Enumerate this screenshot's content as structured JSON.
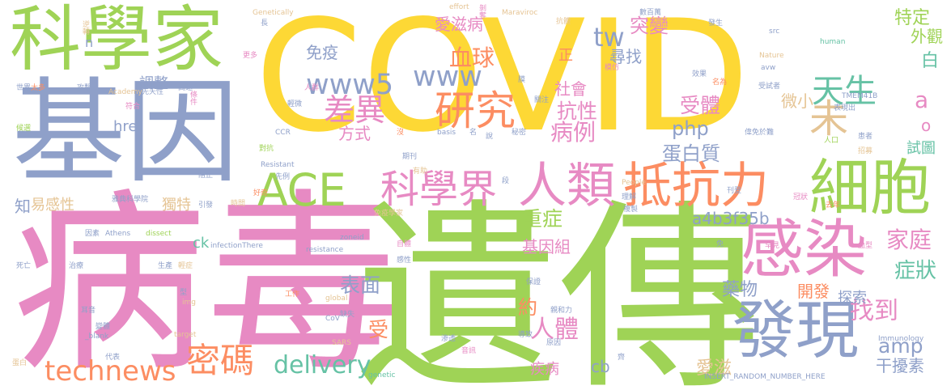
{
  "colors": {
    "green": "#9fd356",
    "blue": "#8fa0c9",
    "pink": "#e78ac3",
    "yellow": "#fdd835",
    "orange": "#fc8d62",
    "teal": "#66c2a5",
    "tan": "#e5c494"
  },
  "words": [
    {
      "text": "COVID",
      "color": "yellow"
    },
    {
      "text": "病毒",
      "color": "pink"
    },
    {
      "text": "遺傳",
      "color": "green"
    },
    {
      "text": "基因",
      "color": "blue"
    },
    {
      "text": "科學家",
      "color": "green"
    },
    {
      "text": "細胞",
      "color": "green"
    },
    {
      "text": "感染",
      "color": "pink"
    },
    {
      "text": "發現",
      "color": "blue"
    },
    {
      "text": "抵抗力",
      "color": "orange"
    },
    {
      "text": "人類",
      "color": "pink"
    },
    {
      "text": "ACE",
      "color": "green"
    },
    {
      "text": "科學界",
      "color": "pink"
    },
    {
      "text": "technews",
      "color": "orange"
    },
    {
      "text": "密碼",
      "color": "orange"
    },
    {
      "text": "delivery",
      "color": "teal"
    },
    {
      "text": "研究",
      "color": "orange"
    },
    {
      "text": "www5",
      "color": "blue"
    },
    {
      "text": "www",
      "color": "blue"
    },
    {
      "text": "差異",
      "color": "pink"
    },
    {
      "text": "天生",
      "color": "teal"
    },
    {
      "text": "未",
      "color": "tan"
    },
    {
      "text": "tw",
      "color": "blue"
    },
    {
      "text": "突變",
      "color": "pink"
    },
    {
      "text": "血球",
      "color": "orange"
    },
    {
      "text": "找到",
      "color": "pink"
    },
    {
      "text": "人體",
      "color": "pink"
    },
    {
      "text": "表面",
      "color": "blue"
    },
    {
      "text": "家庭",
      "color": "pink"
    },
    {
      "text": "症狀",
      "color": "teal"
    },
    {
      "text": "病例",
      "color": "pink"
    },
    {
      "text": "受體",
      "color": "pink"
    },
    {
      "text": "抗性",
      "color": "pink"
    },
    {
      "text": "重症",
      "color": "green"
    },
    {
      "text": "amp",
      "color": "blue"
    },
    {
      "text": "php",
      "color": "blue"
    },
    {
      "text": "蛋白質",
      "color": "blue"
    },
    {
      "text": "藥物",
      "color": "blue"
    },
    {
      "text": "a4b3f35b",
      "color": "blue"
    },
    {
      "text": "開發",
      "color": "orange"
    },
    {
      "text": "基因組",
      "color": "pink"
    },
    {
      "text": "約",
      "color": "orange"
    },
    {
      "text": "受",
      "color": "orange"
    },
    {
      "text": "特定",
      "color": "green"
    },
    {
      "text": "外觀",
      "color": "green"
    },
    {
      "text": "白",
      "color": "teal"
    },
    {
      "text": "a",
      "color": "pink"
    },
    {
      "text": "o",
      "color": "pink"
    },
    {
      "text": "試圖",
      "color": "teal"
    },
    {
      "text": "微小",
      "color": "tan"
    },
    {
      "text": "方式",
      "color": "pink"
    },
    {
      "text": "尋找",
      "color": "blue"
    },
    {
      "text": "免疫",
      "color": "blue"
    },
    {
      "text": "愛滋病",
      "color": "pink"
    },
    {
      "text": "社會",
      "color": "pink"
    },
    {
      "text": "正",
      "color": "orange"
    },
    {
      "text": "調整",
      "color": "blue"
    },
    {
      "text": "href",
      "color": "blue"
    },
    {
      "text": "知",
      "color": "blue"
    },
    {
      "text": "易感性",
      "color": "tan"
    },
    {
      "text": "獨特",
      "color": "tan"
    },
    {
      "text": "ck",
      "color": "teal"
    },
    {
      "text": "愛滋",
      "color": "tan"
    },
    {
      "text": "干擾素",
      "color": "blue"
    },
    {
      "text": "疾病",
      "color": "pink"
    },
    {
      "text": "cb",
      "color": "blue"
    },
    {
      "text": "探索",
      "color": "blue"
    },
    {
      "text": "n",
      "color": "blue"
    }
  ],
  "small_words": [
    {
      "text": "逆轉",
      "color": "tan"
    },
    {
      "text": "世界",
      "color": "blue"
    },
    {
      "text": "太多",
      "color": "orange"
    },
    {
      "text": "攻擊",
      "color": "blue"
    },
    {
      "text": "候選",
      "color": "green"
    },
    {
      "text": "Academy",
      "color": "tan"
    },
    {
      "text": "符合",
      "color": "pink"
    },
    {
      "text": "先天性",
      "color": "blue"
    },
    {
      "text": "條件",
      "color": "pink"
    },
    {
      "text": "高速",
      "color": "blue"
    },
    {
      "text": "更多",
      "color": "pink"
    },
    {
      "text": "長",
      "color": "blue"
    },
    {
      "text": "Genetically",
      "color": "tan"
    },
    {
      "text": "effort",
      "color": "tan"
    },
    {
      "text": "剝奪",
      "color": "pink"
    },
    {
      "text": "CCR",
      "color": "blue"
    },
    {
      "text": "對抗",
      "color": "green"
    },
    {
      "text": "輕微",
      "color": "blue"
    },
    {
      "text": "人群",
      "color": "pink"
    },
    {
      "text": "Resistant",
      "color": "blue"
    },
    {
      "text": "先例",
      "color": "blue"
    },
    {
      "text": "阻止",
      "color": "blue"
    },
    {
      "text": "雅典科學院",
      "color": "blue"
    },
    {
      "text": "引發",
      "color": "blue"
    },
    {
      "text": "時間",
      "color": "tan"
    },
    {
      "text": "因素",
      "color": "blue"
    },
    {
      "text": "Athens",
      "color": "blue"
    },
    {
      "text": "dissect",
      "color": "green"
    },
    {
      "text": "infectionThere",
      "color": "blue"
    },
    {
      "text": "zoneid",
      "color": "blue"
    },
    {
      "text": "resistance",
      "color": "blue"
    },
    {
      "text": "死亡",
      "color": "blue"
    },
    {
      "text": "治療",
      "color": "blue"
    },
    {
      "text": "生產",
      "color": "blue"
    },
    {
      "text": "輕症",
      "color": "tan"
    },
    {
      "text": "型",
      "color": "blue"
    },
    {
      "text": "img",
      "color": "tan"
    },
    {
      "text": "耳音",
      "color": "blue"
    },
    {
      "text": "變體",
      "color": "blue"
    },
    {
      "text": "_blank",
      "color": "blue"
    },
    {
      "text": "target",
      "color": "tan"
    },
    {
      "text": "代表",
      "color": "blue"
    },
    {
      "text": "蛋白",
      "color": "tan"
    },
    {
      "text": "SARS",
      "color": "tan"
    },
    {
      "text": "genetic",
      "color": "teal"
    },
    {
      "text": "免疫學家",
      "color": "tan"
    },
    {
      "text": "CoV",
      "color": "blue"
    },
    {
      "text": "global",
      "color": "tan"
    },
    {
      "text": "缺失",
      "color": "blue"
    },
    {
      "text": "工作",
      "color": "orange"
    },
    {
      "text": "保證",
      "color": "blue"
    },
    {
      "text": "親和力",
      "color": "blue"
    },
    {
      "text": "導致",
      "color": "blue"
    },
    {
      "text": "原因",
      "color": "blue"
    },
    {
      "text": "音訊",
      "color": "pink"
    },
    {
      "text": "Maraviroc",
      "color": "tan"
    },
    {
      "text": "抗體",
      "color": "tan"
    },
    {
      "text": "模仿",
      "color": "pink"
    },
    {
      "text": "發生",
      "color": "blue"
    },
    {
      "text": "效果",
      "color": "blue"
    },
    {
      "text": "名為",
      "color": "orange"
    },
    {
      "text": "src",
      "color": "blue"
    },
    {
      "text": "Nature",
      "color": "tan"
    },
    {
      "text": "avw",
      "color": "blue"
    },
    {
      "text": "human",
      "color": "teal"
    },
    {
      "text": "TMEM41B",
      "color": "blue"
    },
    {
      "text": "表現出",
      "color": "blue"
    },
    {
      "text": "患者",
      "color": "blue"
    },
    {
      "text": "招募",
      "color": "tan"
    },
    {
      "text": "人口",
      "color": "green"
    },
    {
      "text": "偉免於難",
      "color": "blue"
    },
    {
      "text": "受試者",
      "color": "blue"
    },
    {
      "text": "數百萬",
      "color": "blue"
    },
    {
      "text": "期刊",
      "color": "blue"
    },
    {
      "text": "有助",
      "color": "tan"
    },
    {
      "text": "basis",
      "color": "blue"
    },
    {
      "text": "秘密",
      "color": "blue"
    },
    {
      "text": "關注",
      "color": "blue"
    },
    {
      "text": "People",
      "color": "tan"
    },
    {
      "text": "理解",
      "color": "blue"
    },
    {
      "text": "複製",
      "color": "blue"
    },
    {
      "text": "刊登",
      "color": "blue"
    },
    {
      "text": "去年",
      "color": "orange"
    },
    {
      "text": "罕見",
      "color": "pink"
    },
    {
      "text": "Immunology",
      "color": "blue"
    },
    {
      "text": "INSERT_RANDOM_NUMBER_HERE",
      "color": "blue"
    },
    {
      "text": "自體",
      "color": "pink"
    },
    {
      "text": "渗透",
      "color": "blue"
    },
    {
      "text": "感性",
      "color": "blue"
    },
    {
      "text": "好奇",
      "color": "orange"
    },
    {
      "text": "冠狀",
      "color": "pink"
    },
    {
      "text": "血型",
      "color": "pink"
    },
    {
      "text": "免",
      "color": "blue"
    },
    {
      "text": "說",
      "color": "blue"
    },
    {
      "text": "名",
      "color": "blue"
    },
    {
      "text": "沒",
      "color": "orange"
    },
    {
      "text": "段",
      "color": "blue"
    },
    {
      "text": "膜",
      "color": "blue"
    },
    {
      "text": "齊",
      "color": "blue"
    }
  ]
}
